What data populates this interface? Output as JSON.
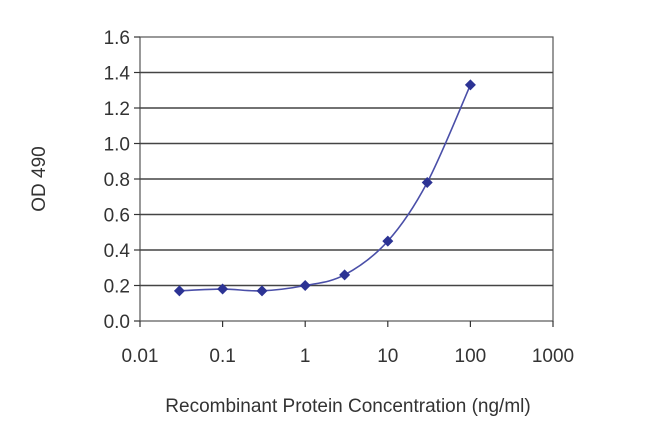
{
  "chart_data": {
    "type": "line",
    "xlabel": "Recombinant Protein Concentration (ng/ml)",
    "ylabel": "OD 490",
    "x_scale": "log",
    "xlim": [
      0.01,
      1000
    ],
    "ylim": [
      0.0,
      1.6
    ],
    "x_ticks": [
      "0.01",
      "0.1",
      "1",
      "10",
      "100",
      "1000"
    ],
    "y_ticks": [
      "0.0",
      "0.2",
      "0.4",
      "0.6",
      "0.8",
      "1.0",
      "1.2",
      "1.4",
      "1.6"
    ],
    "grid": "horizontal",
    "marker": "diamond",
    "series_color": "#2c3394",
    "series": [
      {
        "x": [
          0.03,
          0.1,
          0.3,
          1,
          3,
          10,
          30,
          100
        ],
        "y": [
          0.17,
          0.18,
          0.17,
          0.2,
          0.26,
          0.45,
          0.78,
          1.33
        ]
      }
    ]
  }
}
